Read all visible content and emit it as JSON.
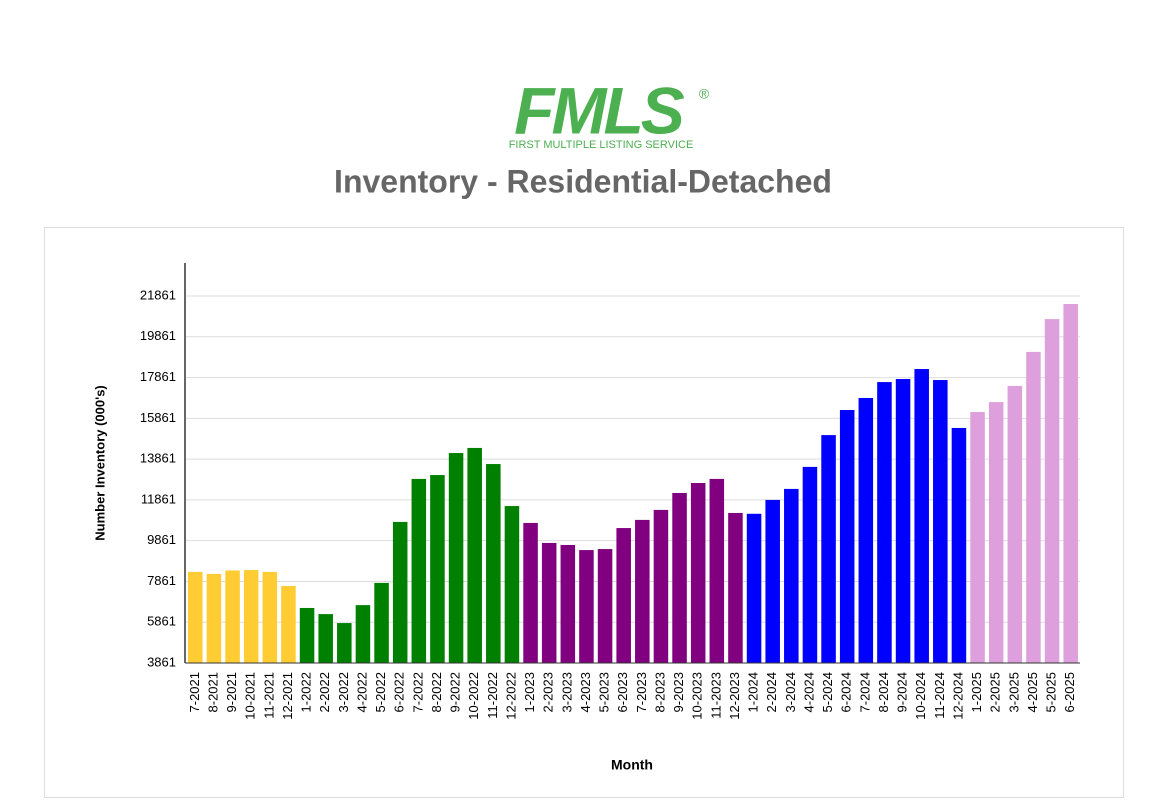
{
  "logo": {
    "name": "FMLS",
    "mark": "®",
    "tagline": "FIRST MULTIPLE LISTING SERVICE"
  },
  "chart_data": {
    "type": "bar",
    "title": "Inventory - Residential-Detached",
    "x_label": "Month",
    "y_label": "Number Inventory (000's)",
    "categories": [
      "7-2021",
      "8-2021",
      "9-2021",
      "10-2021",
      "11-2021",
      "12-2021",
      "1-2022",
      "2-2022",
      "3-2022",
      "4-2022",
      "5-2022",
      "6-2022",
      "7-2022",
      "8-2022",
      "9-2022",
      "10-2022",
      "11-2022",
      "12-2022",
      "1-2023",
      "2-2023",
      "3-2023",
      "4-2023",
      "5-2023",
      "6-2023",
      "7-2023",
      "8-2023",
      "9-2023",
      "10-2023",
      "11-2023",
      "12-2023",
      "1-2024",
      "2-2024",
      "3-2024",
      "4-2024",
      "5-2024",
      "6-2024",
      "7-2024",
      "8-2024",
      "9-2024",
      "10-2024",
      "11-2024",
      "12-2024",
      "1-2025",
      "2-2025",
      "3-2025",
      "4-2025",
      "5-2025",
      "6-2025"
    ],
    "values": [
      8330,
      8230,
      8400,
      8420,
      8330,
      7640,
      6560,
      6260,
      5820,
      6700,
      7790,
      10780,
      12890,
      13080,
      14160,
      14410,
      13620,
      11560,
      10730,
      9750,
      9650,
      9400,
      9450,
      10480,
      10880,
      11370,
      12200,
      12690,
      12890,
      11220,
      11180,
      11860,
      12400,
      13480,
      15040,
      16270,
      16860,
      17640,
      17790,
      18280,
      17740,
      15390,
      16170,
      16660,
      17450,
      19120,
      20730,
      21470
    ],
    "colors": [
      "#ffcc33",
      "#ffcc33",
      "#ffcc33",
      "#ffcc33",
      "#ffcc33",
      "#ffcc33",
      "#008000",
      "#008000",
      "#008000",
      "#008000",
      "#008000",
      "#008000",
      "#008000",
      "#008000",
      "#008000",
      "#008000",
      "#008000",
      "#008000",
      "#800080",
      "#800080",
      "#800080",
      "#800080",
      "#800080",
      "#800080",
      "#800080",
      "#800080",
      "#800080",
      "#800080",
      "#800080",
      "#800080",
      "#0000ff",
      "#0000ff",
      "#0000ff",
      "#0000ff",
      "#0000ff",
      "#0000ff",
      "#0000ff",
      "#0000ff",
      "#0000ff",
      "#0000ff",
      "#0000ff",
      "#0000ff",
      "#dda0dd",
      "#dda0dd",
      "#dda0dd",
      "#dda0dd",
      "#dda0dd",
      "#dda0dd"
    ],
    "ylim": [
      3861,
      23481
    ],
    "yticks": [
      3861,
      5861,
      7861,
      9861,
      11861,
      13861,
      15861,
      17861,
      19861,
      21861
    ],
    "grid": true
  }
}
